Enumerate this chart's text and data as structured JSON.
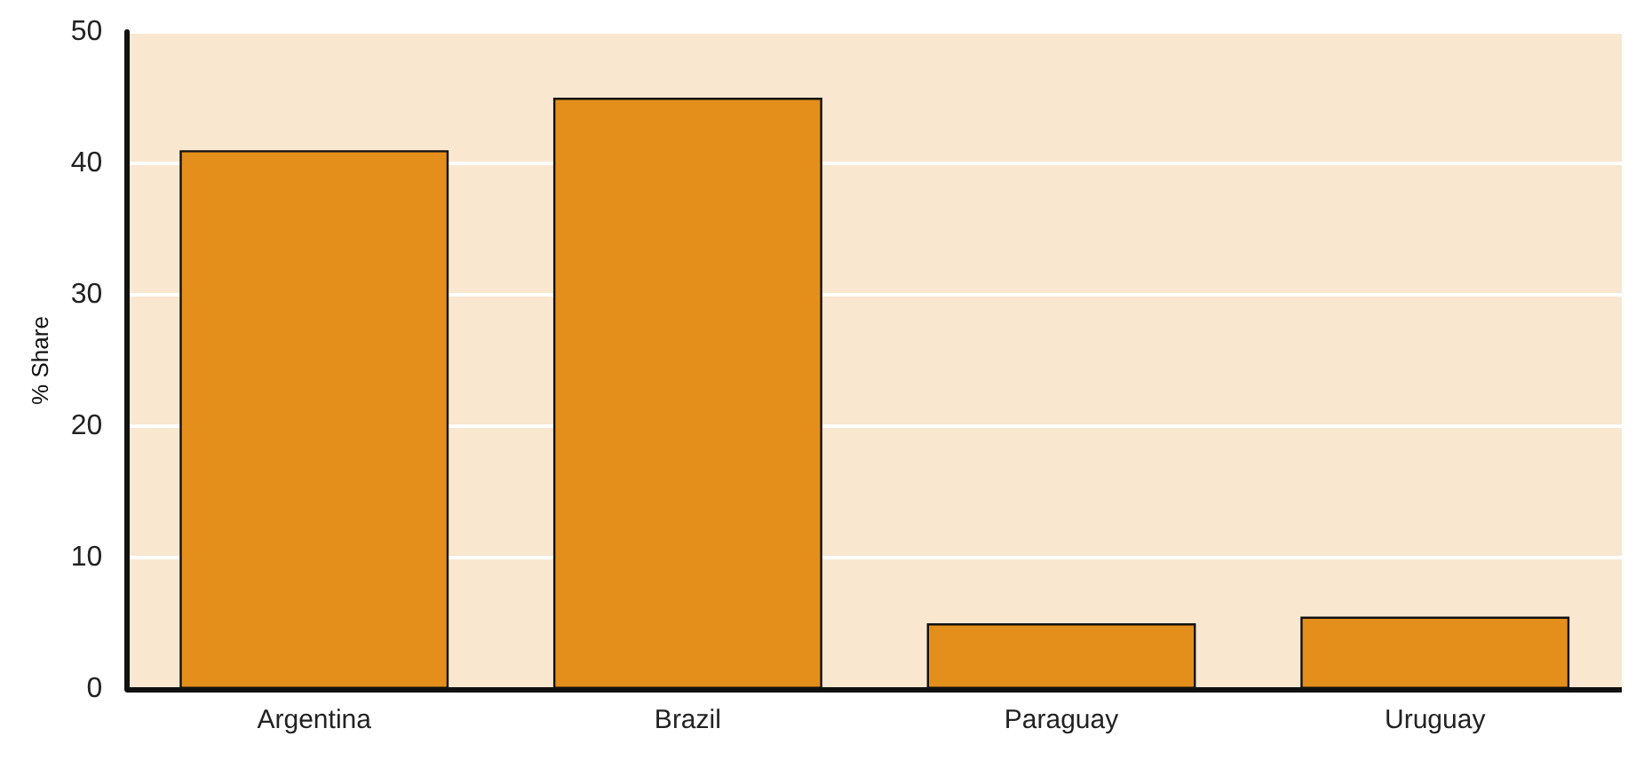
{
  "chart_data": {
    "type": "bar",
    "ylabel": "% Share",
    "categories": [
      "Argentina",
      "Brazil",
      "Paraguay",
      "Uruguay"
    ],
    "values": [
      41,
      45,
      5,
      5.5
    ],
    "color": "#e48f1b",
    "ylim": [
      0,
      50
    ],
    "yticks": [
      0,
      10,
      20,
      30,
      40,
      50
    ],
    "grid": "y"
  }
}
